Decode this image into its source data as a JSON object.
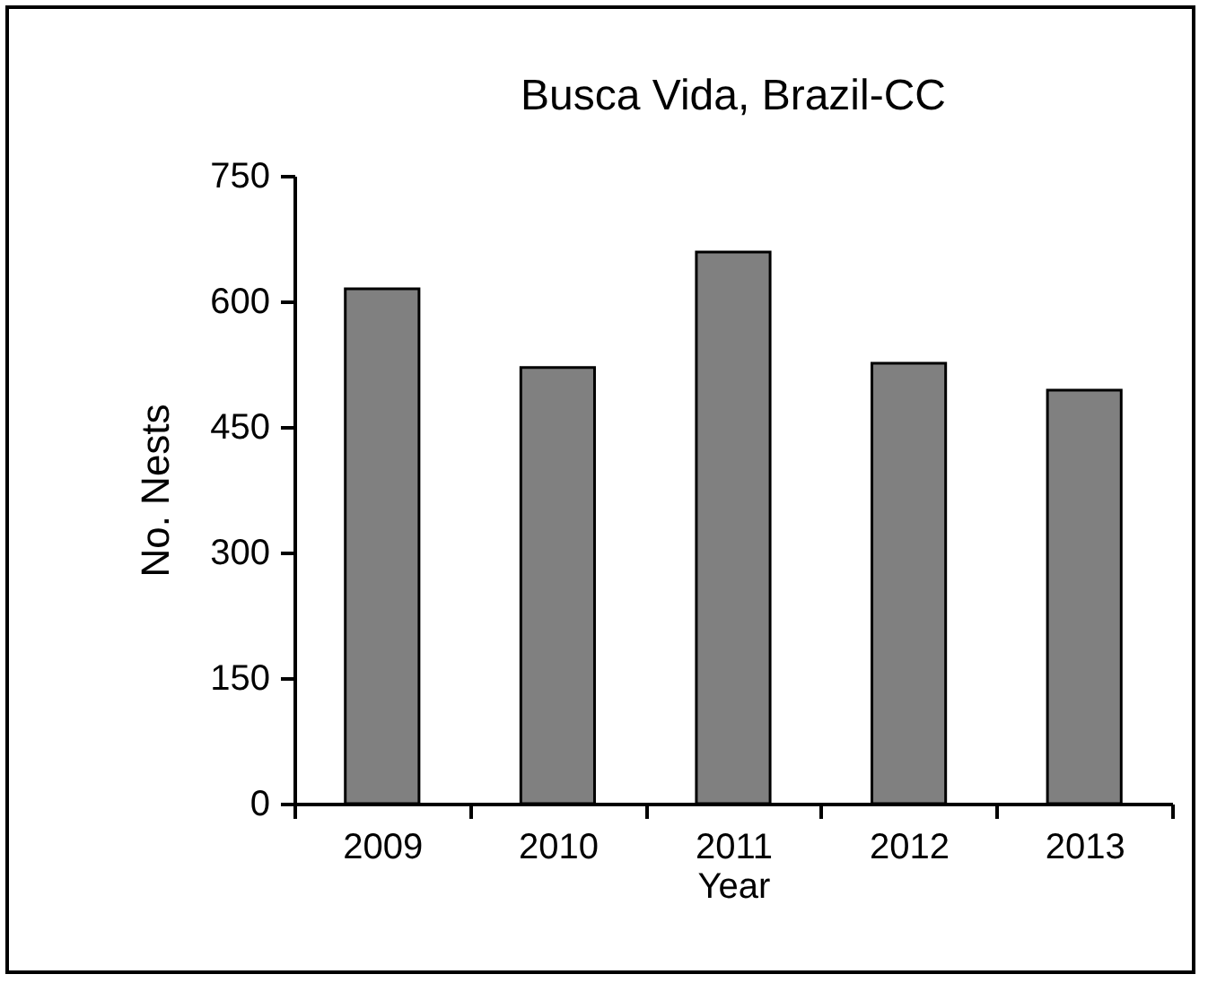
{
  "chart_data": {
    "type": "bar",
    "title": "Busca Vida, Brazil-CC",
    "xlabel": "Year",
    "ylabel": "No. Nests",
    "categories": [
      "2009",
      "2010",
      "2011",
      "2012",
      "2013"
    ],
    "values": [
      615,
      521,
      659,
      526,
      494
    ],
    "color": "#808080",
    "ylim": [
      0,
      750
    ],
    "yticks": [
      0,
      150,
      300,
      450,
      600,
      750
    ],
    "grid": false
  }
}
